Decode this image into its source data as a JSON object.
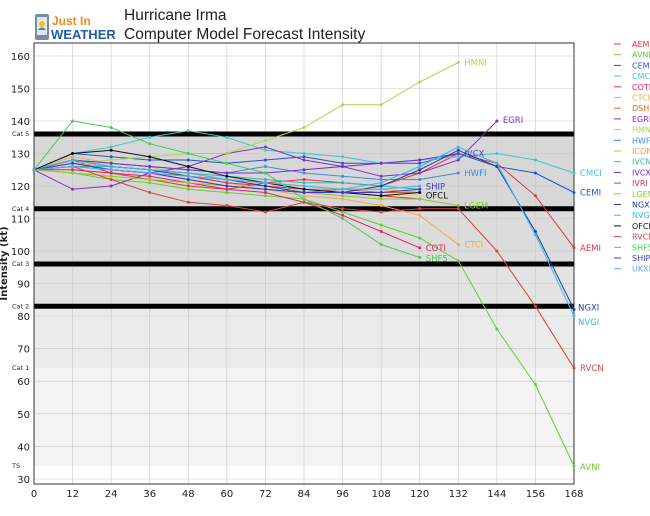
{
  "brand": {
    "line1": "Just In",
    "line2": "WEATHER",
    "color1": "#f08a1c",
    "color2": "#1f5fa8"
  },
  "header": {
    "title": "Hurricane Irma",
    "subtitle": "Computer Model Forecast Intensity"
  },
  "chart_data": {
    "type": "line",
    "title": "Hurricane Irma",
    "subtitle": "Computer Model Forecast Intensity",
    "xlabel": "",
    "ylabel": "Intensity (kt)",
    "x": [
      0,
      12,
      24,
      36,
      48,
      60,
      72,
      84,
      96,
      108,
      120,
      132,
      144,
      156,
      168
    ],
    "xlim": [
      0,
      168
    ],
    "ylim": [
      30,
      162
    ],
    "y_scale": "broken: 30-80 compressed, 80-160 expanded",
    "yticks": [
      30,
      40,
      50,
      60,
      70,
      80,
      90,
      100,
      110,
      120,
      130,
      140,
      150,
      160
    ],
    "categories": [
      {
        "label": "Cat 5",
        "value": 136
      },
      {
        "label": "Cat 4",
        "value": 113
      },
      {
        "label": "Cat 3",
        "value": 96
      },
      {
        "label": "Cat 2",
        "value": 83
      },
      {
        "label": "Cat 1",
        "value": 64
      },
      {
        "label": "TS",
        "value": 34
      }
    ],
    "series": [
      {
        "name": "AEMI",
        "color": "#e0383e",
        "label": "AEMI",
        "x": [
          0,
          12,
          24,
          36,
          48,
          60,
          72,
          84,
          96,
          108,
          120,
          132,
          144,
          156,
          168
        ],
        "values": [
          125,
          128,
          124,
          122,
          120,
          119,
          121,
          122,
          121,
          120,
          124,
          130,
          127,
          117,
          101
        ]
      },
      {
        "name": "AVNI",
        "color": "#66cc33",
        "label": "AVNI",
        "x": [
          0,
          12,
          24,
          36,
          48,
          60,
          72,
          84,
          96,
          108,
          120,
          132,
          144,
          156,
          168
        ],
        "values": [
          125,
          124,
          122,
          121,
          119,
          118,
          117,
          116,
          112,
          108,
          104,
          97,
          76,
          59,
          34
        ]
      },
      {
        "name": "CEMI",
        "color": "#2255cc",
        "label": "CEMI",
        "x": [
          0,
          12,
          24,
          36,
          48,
          60,
          72,
          84,
          96,
          108,
          120,
          132,
          144,
          156,
          168
        ],
        "values": [
          125,
          130,
          129,
          128,
          128,
          127,
          128,
          129,
          127,
          127,
          127,
          130,
          126,
          124,
          118
        ]
      },
      {
        "name": "CMCI",
        "color": "#3ec7d0",
        "label": "CMCI",
        "x": [
          0,
          12,
          24,
          36,
          48,
          60,
          72,
          84,
          96,
          108,
          120,
          132,
          144,
          156,
          168
        ],
        "values": [
          125,
          130,
          132,
          135,
          137,
          135,
          131,
          130,
          129,
          127,
          128,
          129,
          130,
          128,
          124
        ]
      },
      {
        "name": "COTI",
        "color": "#e0235f",
        "label": "COTI",
        "x": [
          0,
          12,
          24,
          36,
          48,
          60,
          72,
          84,
          96,
          108,
          120
        ],
        "values": [
          125,
          125,
          124,
          123,
          121,
          119,
          118,
          115,
          111,
          106,
          101
        ]
      },
      {
        "name": "CTCI",
        "color": "#f0a848",
        "label": "CTCI",
        "x": [
          0,
          12,
          24,
          36,
          48,
          60,
          72,
          84,
          96,
          108,
          120,
          132
        ],
        "values": [
          125,
          129,
          127,
          126,
          123,
          121,
          119,
          117,
          116,
          114,
          111,
          102
        ]
      },
      {
        "name": "DSHP",
        "color": "#d06a1e",
        "x": [
          0,
          12,
          24,
          36,
          48,
          60,
          72,
          84,
          96,
          108,
          120
        ],
        "values": [
          125,
          127,
          125,
          124,
          122,
          120,
          119,
          118,
          119,
          118,
          118
        ]
      },
      {
        "name": "EGRI",
        "color": "#8a2bcf",
        "label": "EGRI",
        "x": [
          0,
          12,
          24,
          36,
          48,
          60,
          72,
          84,
          96,
          108,
          120,
          132,
          144
        ],
        "values": [
          125,
          119,
          120,
          124,
          126,
          130,
          132,
          128,
          126,
          123,
          124,
          128,
          140
        ]
      },
      {
        "name": "HMNI",
        "color": "#a8d84e",
        "label": "HMNI",
        "x": [
          0,
          12,
          24,
          36,
          48,
          60,
          72,
          84,
          96,
          108,
          120,
          132
        ],
        "values": [
          125,
          127,
          128,
          129,
          130,
          130,
          134,
          138,
          145,
          145,
          152,
          158
        ]
      },
      {
        "name": "HWFI",
        "color": "#3a8de0",
        "label": "HWFI",
        "x": [
          0,
          12,
          24,
          36,
          48,
          60,
          72,
          84,
          96,
          108,
          120,
          132
        ],
        "values": [
          125,
          128,
          127,
          126,
          125,
          124,
          126,
          124,
          123,
          122,
          122,
          124
        ]
      },
      {
        "name": "ICON",
        "color": "#e8a040",
        "x": [
          0,
          12,
          24,
          36,
          48,
          60,
          72,
          84,
          96,
          108,
          120
        ],
        "values": [
          125,
          127,
          126,
          125,
          124,
          122,
          121,
          120,
          119,
          119,
          118
        ]
      },
      {
        "name": "IVCN",
        "color": "#35b5b0",
        "x": [
          0,
          12,
          24,
          36,
          48,
          60,
          72,
          84,
          96,
          108,
          120
        ],
        "values": [
          125,
          126,
          126,
          125,
          124,
          123,
          122,
          121,
          121,
          120,
          119
        ]
      },
      {
        "name": "IVCX",
        "color": "#7a2ad0",
        "label": "IVCX",
        "x": [
          0,
          12,
          24,
          36,
          48,
          60,
          72,
          84,
          96,
          108,
          120,
          132
        ],
        "values": [
          125,
          128,
          127,
          126,
          125,
          124,
          124,
          125,
          126,
          127,
          128,
          130
        ]
      },
      {
        "name": "IVRI",
        "color": "#e03050",
        "x": [
          0,
          12,
          24,
          36,
          48,
          60,
          72,
          84,
          96,
          108,
          120
        ],
        "values": [
          125,
          126,
          125,
          124,
          123,
          121,
          120,
          119,
          118,
          117,
          116
        ]
      },
      {
        "name": "LGEM",
        "color": "#88cc22",
        "label": "LGEM",
        "x": [
          0,
          12,
          24,
          36,
          48,
          60,
          72,
          84,
          96,
          108,
          120,
          132
        ],
        "values": [
          125,
          124,
          123,
          122,
          121,
          120,
          119,
          118,
          117,
          116,
          116,
          114
        ]
      },
      {
        "name": "NGXI",
        "color": "#1a3fa0",
        "label": "NGXI",
        "x": [
          0,
          12,
          24,
          36,
          48,
          60,
          72,
          84,
          96,
          108,
          120,
          132,
          144,
          156,
          168
        ],
        "values": [
          125,
          128,
          126,
          125,
          123,
          122,
          120,
          118,
          118,
          120,
          125,
          131,
          126,
          106,
          82
        ]
      },
      {
        "name": "NVGI",
        "color": "#3ab8e8",
        "label": "NVGI",
        "x": [
          0,
          12,
          24,
          36,
          48,
          60,
          72,
          84,
          96,
          108,
          120,
          132,
          144,
          156,
          168
        ],
        "values": [
          125,
          128,
          126,
          125,
          124,
          122,
          121,
          119,
          119,
          121,
          126,
          132,
          127,
          105,
          80
        ]
      },
      {
        "name": "OFCL",
        "color": "#111111",
        "label": "OFCL",
        "x": [
          0,
          12,
          24,
          36,
          48,
          60,
          72,
          84,
          96,
          108,
          120
        ],
        "values": [
          125,
          130,
          131,
          129,
          126,
          123,
          121,
          119,
          118,
          117,
          118
        ]
      },
      {
        "name": "RVCN",
        "color": "#e04040",
        "label": "RVCN",
        "x": [
          0,
          12,
          24,
          36,
          48,
          60,
          72,
          84,
          96,
          108,
          120,
          132,
          144,
          156,
          168
        ],
        "values": [
          125,
          126,
          122,
          118,
          115,
          114,
          112,
          115,
          113,
          112,
          113,
          113,
          100,
          83,
          64
        ]
      },
      {
        "name": "SHF5",
        "color": "#44cc55",
        "label": "SHF5",
        "x": [
          0,
          12,
          24,
          36,
          48,
          60,
          72,
          84,
          96,
          108,
          120
        ],
        "values": [
          125,
          140,
          138,
          133,
          130,
          127,
          124,
          116,
          110,
          102,
          98
        ]
      },
      {
        "name": "SHIP",
        "color": "#3a3acc",
        "label": "SHIP",
        "x": [
          0,
          12,
          24,
          36,
          48,
          60,
          72,
          84,
          96,
          108,
          120
        ],
        "values": [
          125,
          127,
          125,
          124,
          122,
          120,
          119,
          118,
          118,
          118,
          119
        ]
      },
      {
        "name": "UKXI",
        "color": "#5aaae8",
        "x": [
          0,
          12,
          24,
          36,
          48,
          60,
          72,
          84,
          96,
          108,
          120
        ],
        "values": [
          125,
          126,
          125,
          124,
          123,
          122,
          121,
          120,
          119,
          119,
          120
        ]
      }
    ]
  }
}
